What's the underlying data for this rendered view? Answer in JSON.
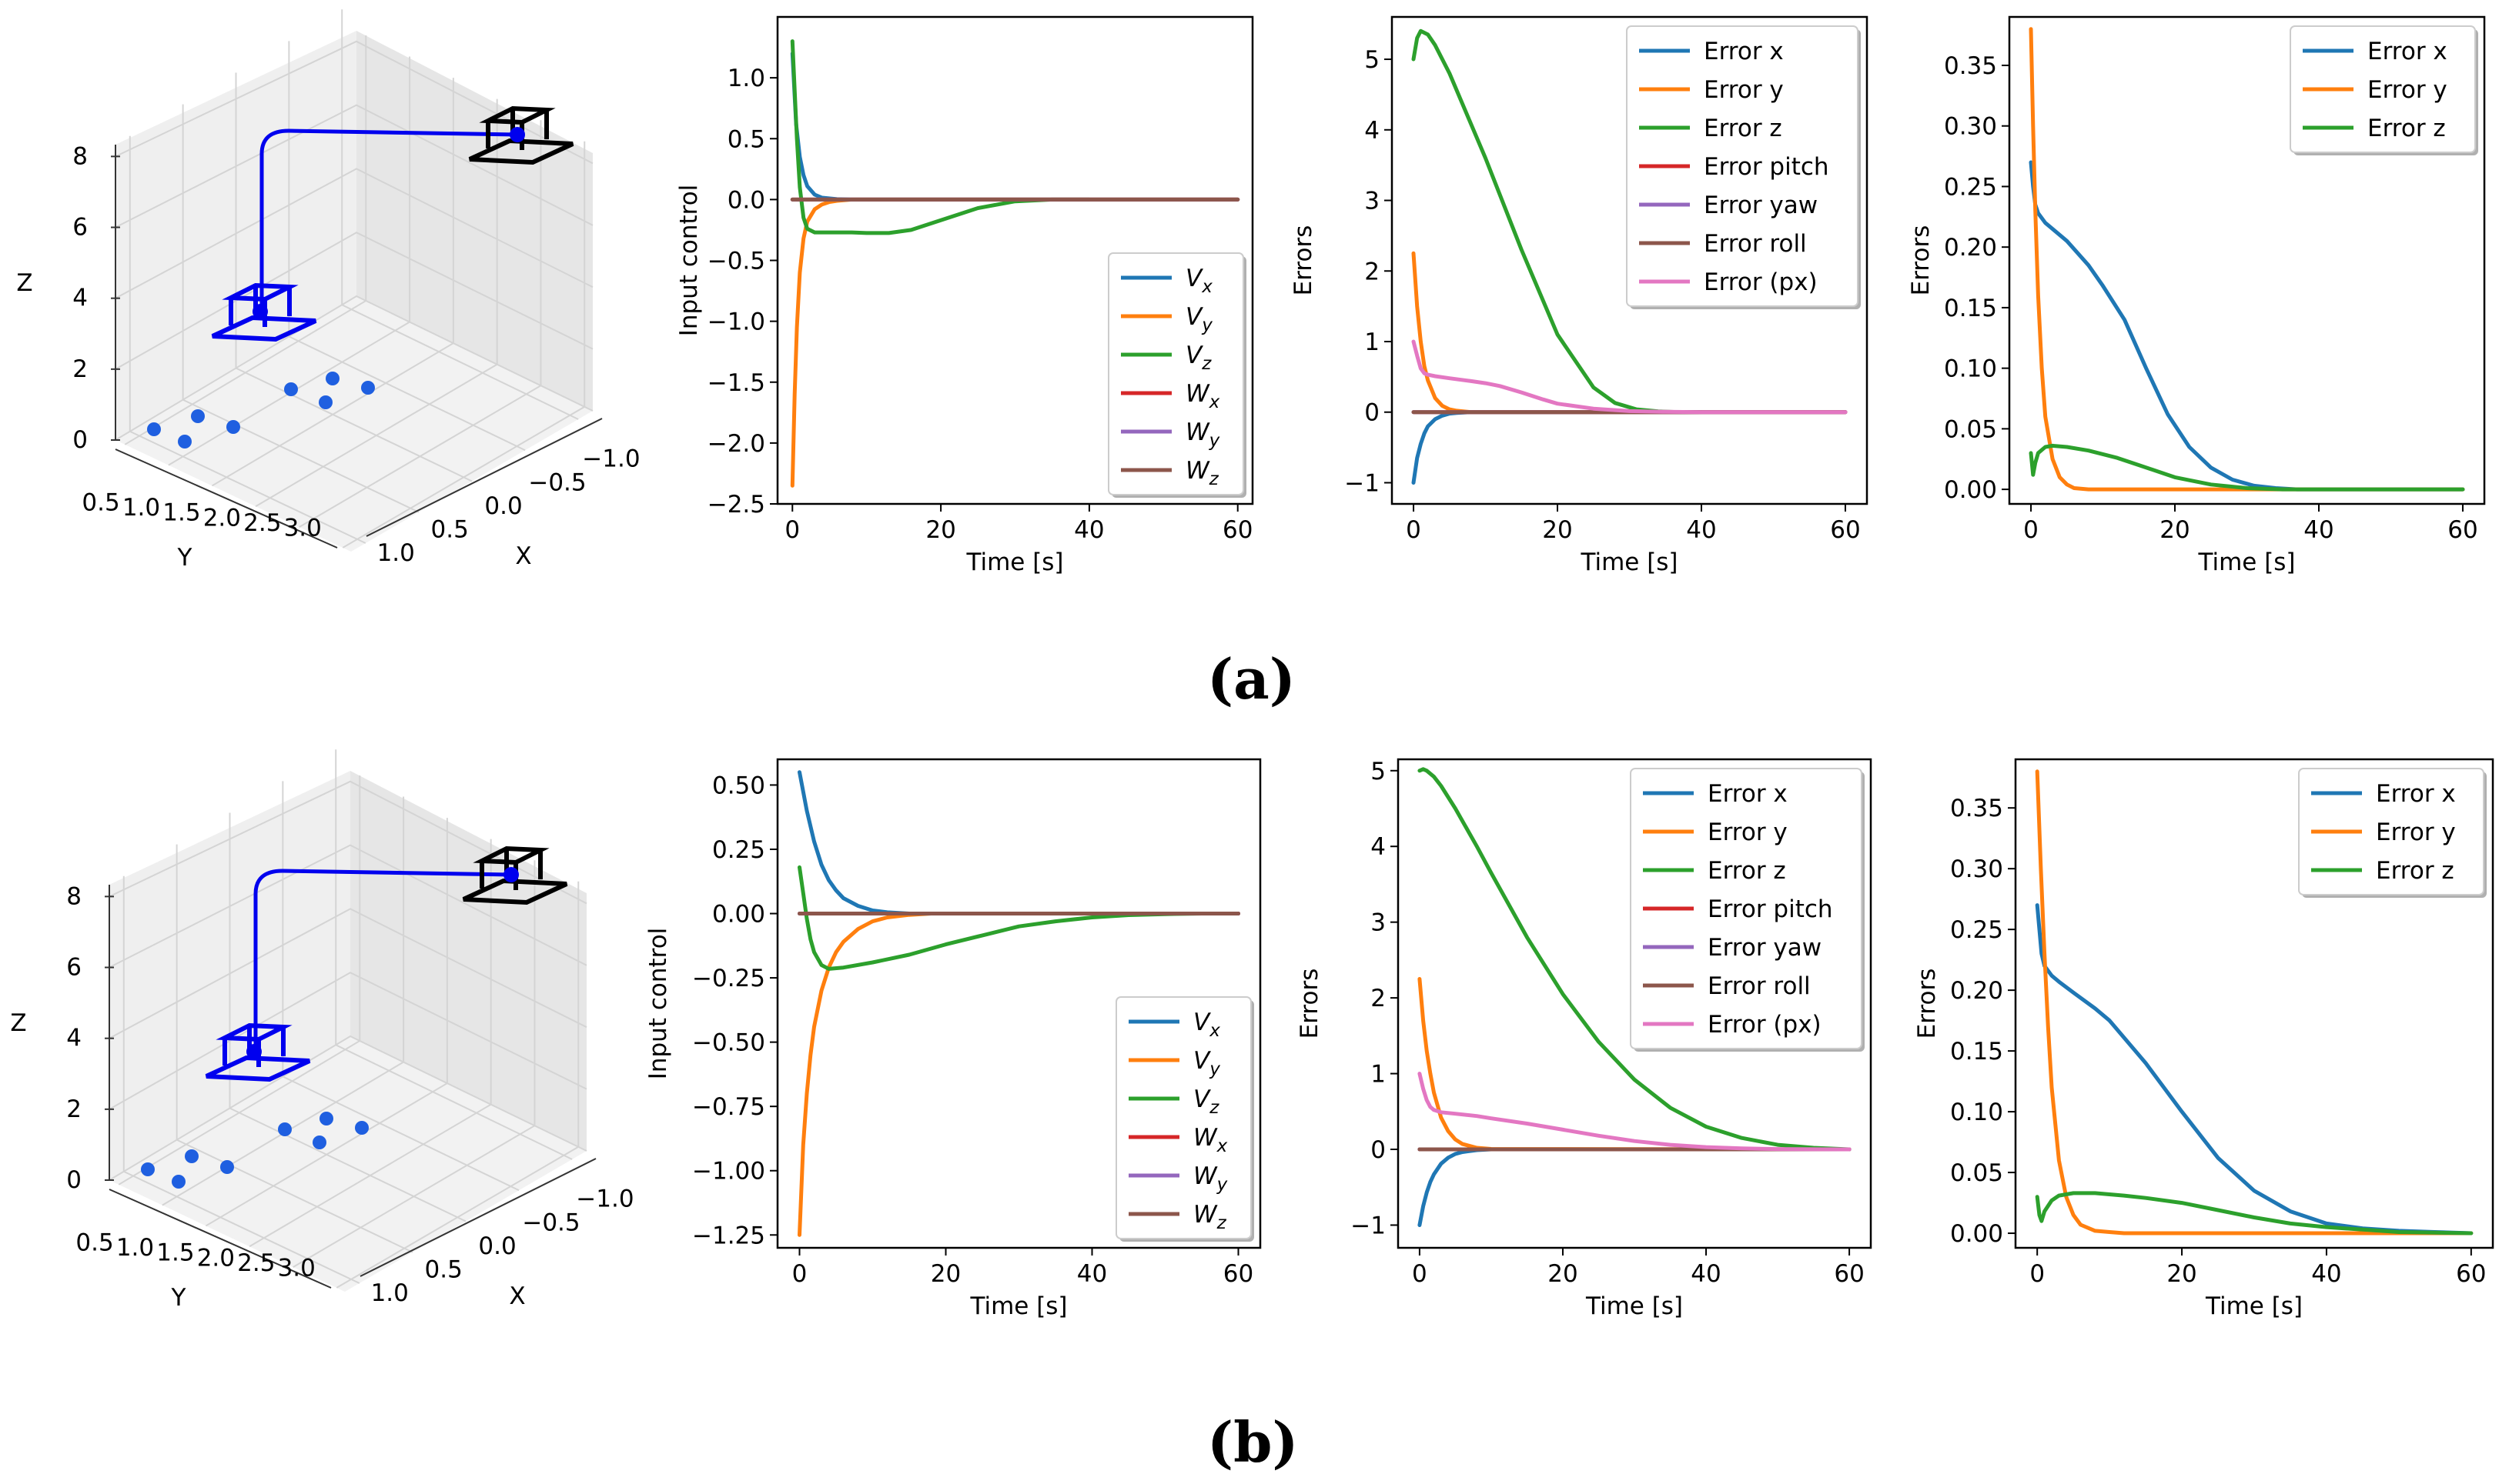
{
  "figure": {
    "row_labels": [
      "(a)",
      "(b)"
    ]
  },
  "chart_data": [
    {
      "panel": "(a)",
      "type": "line3d",
      "xlabel": "X",
      "ylabel": "Y",
      "zlabel": "Z",
      "xticks": [
        "1.0",
        "0.5",
        "0.0",
        "−0.5",
        "−1.0"
      ],
      "yticks": [
        "0.5",
        "1.0",
        "1.5",
        "2.0",
        "2.5",
        "3.0"
      ],
      "zticks": [
        "0",
        "2",
        "4",
        "6",
        "8"
      ],
      "colors": {
        "trajectory": "#0000ee",
        "final_camera": "#0000ee",
        "target_camera": "#000000",
        "feature_points": "#1f5fe0"
      }
    },
    {
      "panel": "(a)",
      "type": "line",
      "xlabel": "Time [s]",
      "ylabel": "Input control",
      "xlim": [
        -2,
        62
      ],
      "ylim": [
        -2.5,
        1.5
      ],
      "grid": false,
      "legend": "lower-right",
      "xticks": [
        0,
        20,
        40,
        60
      ],
      "yticks": [
        -2.5,
        -2.0,
        -1.5,
        -1.0,
        -0.5,
        0.0,
        0.5,
        1.0
      ],
      "series": [
        {
          "name": "V_x",
          "color": "#1f77b4",
          "x": [
            0,
            0.5,
            1,
            1.5,
            2,
            3,
            4,
            6,
            8,
            60
          ],
          "y": [
            1.2,
            0.62,
            0.35,
            0.2,
            0.11,
            0.04,
            0.015,
            0.003,
            0,
            0
          ]
        },
        {
          "name": "V_y",
          "color": "#ff7f0e",
          "x": [
            0,
            0.3,
            0.6,
            1,
            1.5,
            2,
            3,
            4,
            5,
            6,
            8,
            60
          ],
          "y": [
            -2.35,
            -1.6,
            -1.05,
            -0.6,
            -0.32,
            -0.18,
            -0.08,
            -0.04,
            -0.02,
            -0.01,
            0,
            0
          ]
        },
        {
          "name": "V_z",
          "color": "#2ca02c",
          "x": [
            0,
            0.3,
            0.6,
            1,
            1.5,
            2,
            3,
            5,
            8,
            10,
            13,
            16,
            20,
            25,
            30,
            35,
            40
          ],
          "y": [
            1.3,
            0.9,
            0.5,
            0.1,
            -0.15,
            -0.24,
            -0.27,
            -0.27,
            -0.27,
            -0.275,
            -0.275,
            -0.25,
            -0.17,
            -0.07,
            -0.015,
            0,
            0
          ]
        },
        {
          "name": "W_x",
          "color": "#d62728",
          "x": [
            0,
            60
          ],
          "y": [
            0,
            0
          ]
        },
        {
          "name": "W_y",
          "color": "#9467bd",
          "x": [
            0,
            60
          ],
          "y": [
            0,
            0
          ]
        },
        {
          "name": "W_z",
          "color": "#8c564b",
          "x": [
            0,
            60
          ],
          "y": [
            0,
            0
          ]
        }
      ]
    },
    {
      "panel": "(a)",
      "type": "line",
      "xlabel": "Time [s]",
      "ylabel": "Errors",
      "xlim": [
        -3,
        63
      ],
      "ylim": [
        -1.3,
        5.6
      ],
      "grid": false,
      "legend": "upper-right",
      "xticks": [
        0,
        20,
        40,
        60
      ],
      "yticks": [
        -1,
        0,
        1,
        2,
        3,
        4,
        5
      ],
      "series": [
        {
          "name": "Error x",
          "color": "#1f77b4",
          "x": [
            0,
            0.5,
            1,
            1.5,
            2,
            3,
            4,
            5,
            6,
            8,
            60
          ],
          "y": [
            -1.0,
            -0.65,
            -0.45,
            -0.3,
            -0.2,
            -0.1,
            -0.05,
            -0.02,
            -0.01,
            0,
            0
          ]
        },
        {
          "name": "Error y",
          "color": "#ff7f0e",
          "x": [
            0,
            0.5,
            1,
            1.5,
            2,
            3,
            4,
            5,
            6,
            8,
            60
          ],
          "y": [
            2.25,
            1.5,
            1.0,
            0.65,
            0.45,
            0.2,
            0.09,
            0.04,
            0.02,
            0,
            0
          ]
        },
        {
          "name": "Error z",
          "color": "#2ca02c",
          "x": [
            0,
            0.5,
            1,
            2,
            3,
            5,
            10,
            15,
            20,
            25,
            28,
            31,
            34,
            37,
            40
          ],
          "y": [
            5.0,
            5.3,
            5.4,
            5.35,
            5.2,
            4.8,
            3.6,
            2.3,
            1.1,
            0.35,
            0.13,
            0.04,
            0.01,
            0,
            0
          ]
        },
        {
          "name": "Error pitch",
          "color": "#d62728",
          "x": [
            0,
            60
          ],
          "y": [
            0,
            0
          ]
        },
        {
          "name": "Error yaw",
          "color": "#9467bd",
          "x": [
            0,
            60
          ],
          "y": [
            0,
            0
          ]
        },
        {
          "name": "Error roll",
          "color": "#8c564b",
          "x": [
            0,
            60
          ],
          "y": [
            0,
            0
          ]
        },
        {
          "name": "Error (px)",
          "color": "#e377c2",
          "x": [
            0,
            0.5,
            1,
            1.5,
            2,
            3,
            5,
            8,
            10,
            12,
            15,
            18,
            20,
            25,
            30,
            35,
            40,
            60
          ],
          "y": [
            1.0,
            0.8,
            0.62,
            0.55,
            0.53,
            0.51,
            0.48,
            0.44,
            0.41,
            0.37,
            0.28,
            0.18,
            0.12,
            0.05,
            0.015,
            0.005,
            0,
            0
          ]
        }
      ]
    },
    {
      "panel": "(a)",
      "type": "line",
      "xlabel": "Time [s]",
      "ylabel": "Errors",
      "xlim": [
        -3,
        63
      ],
      "ylim": [
        -0.012,
        0.39
      ],
      "grid": false,
      "legend": "upper-right",
      "xticks": [
        0,
        20,
        40,
        60
      ],
      "yticks": [
        0.0,
        0.05,
        0.1,
        0.15,
        0.2,
        0.25,
        0.3,
        0.35
      ],
      "series": [
        {
          "name": "Error x",
          "color": "#1f77b4",
          "x": [
            0,
            0.3,
            0.6,
            1,
            2,
            3,
            5,
            8,
            10,
            13,
            16,
            19,
            22,
            25,
            28,
            31,
            34,
            37,
            40,
            60
          ],
          "y": [
            0.27,
            0.25,
            0.235,
            0.228,
            0.22,
            0.215,
            0.205,
            0.185,
            0.168,
            0.14,
            0.1,
            0.062,
            0.035,
            0.018,
            0.008,
            0.003,
            0.001,
            0,
            0,
            0
          ]
        },
        {
          "name": "Error y",
          "color": "#ff7f0e",
          "x": [
            0,
            0.3,
            0.6,
            1,
            1.5,
            2,
            3,
            4,
            5,
            6,
            8,
            60
          ],
          "y": [
            0.38,
            0.3,
            0.23,
            0.16,
            0.1,
            0.06,
            0.025,
            0.01,
            0.004,
            0.001,
            0,
            0
          ]
        },
        {
          "name": "Error z",
          "color": "#2ca02c",
          "x": [
            0,
            0.3,
            0.6,
            1,
            2,
            3,
            5,
            8,
            12,
            15,
            20,
            25,
            30,
            35,
            40,
            60
          ],
          "y": [
            0.03,
            0.012,
            0.022,
            0.03,
            0.035,
            0.036,
            0.035,
            0.032,
            0.026,
            0.02,
            0.01,
            0.004,
            0.001,
            0,
            0,
            0
          ]
        }
      ]
    },
    {
      "panel": "(b)",
      "type": "line3d",
      "xlabel": "X",
      "ylabel": "Y",
      "zlabel": "Z",
      "xticks": [
        "1.0",
        "0.5",
        "0.0",
        "−0.5",
        "−1.0"
      ],
      "yticks": [
        "0.5",
        "1.0",
        "1.5",
        "2.0",
        "2.5",
        "3.0"
      ],
      "zticks": [
        "0",
        "2",
        "4",
        "6",
        "8"
      ],
      "colors": {
        "trajectory": "#0000ee",
        "final_camera": "#0000ee",
        "target_camera": "#000000",
        "feature_points": "#1f5fe0"
      }
    },
    {
      "panel": "(b)",
      "type": "line",
      "xlabel": "Time [s]",
      "ylabel": "Input control",
      "xlim": [
        -3,
        63
      ],
      "ylim": [
        -1.3,
        0.6
      ],
      "grid": false,
      "legend": "lower-right",
      "xticks": [
        0,
        20,
        40,
        60
      ],
      "yticks": [
        -1.25,
        -1.0,
        -0.75,
        -0.5,
        -0.25,
        0.0,
        0.25,
        0.5
      ],
      "series": [
        {
          "name": "V_x",
          "color": "#1f77b4",
          "x": [
            0,
            1,
            2,
            3,
            4,
            5,
            6,
            8,
            10,
            12,
            15,
            60
          ],
          "y": [
            0.55,
            0.4,
            0.28,
            0.19,
            0.13,
            0.09,
            0.06,
            0.03,
            0.012,
            0.005,
            0,
            0
          ]
        },
        {
          "name": "V_y",
          "color": "#ff7f0e",
          "x": [
            0,
            0.5,
            1,
            1.5,
            2,
            3,
            4,
            5,
            6,
            8,
            10,
            12,
            15,
            18,
            20,
            60
          ],
          "y": [
            -1.25,
            -0.9,
            -0.7,
            -0.55,
            -0.44,
            -0.3,
            -0.21,
            -0.15,
            -0.11,
            -0.06,
            -0.03,
            -0.015,
            -0.005,
            0,
            0,
            0
          ]
        },
        {
          "name": "V_z",
          "color": "#2ca02c",
          "x": [
            0,
            0.5,
            1,
            1.5,
            2,
            3,
            4,
            6,
            10,
            15,
            20,
            25,
            30,
            35,
            40,
            45,
            50,
            55
          ],
          "y": [
            0.18,
            0.08,
            -0.02,
            -0.1,
            -0.15,
            -0.2,
            -0.215,
            -0.21,
            -0.19,
            -0.16,
            -0.12,
            -0.085,
            -0.05,
            -0.03,
            -0.015,
            -0.006,
            -0.002,
            0
          ]
        },
        {
          "name": "W_x",
          "color": "#d62728",
          "x": [
            0,
            60
          ],
          "y": [
            0,
            0
          ]
        },
        {
          "name": "W_y",
          "color": "#9467bd",
          "x": [
            0,
            60
          ],
          "y": [
            0,
            0
          ]
        },
        {
          "name": "W_z",
          "color": "#8c564b",
          "x": [
            0,
            60
          ],
          "y": [
            0,
            0
          ]
        }
      ]
    },
    {
      "panel": "(b)",
      "type": "line",
      "xlabel": "Time [s]",
      "ylabel": "Errors",
      "xlim": [
        -3,
        63
      ],
      "ylim": [
        -1.3,
        5.15
      ],
      "grid": false,
      "legend": "upper-right",
      "xticks": [
        0,
        20,
        40,
        60
      ],
      "yticks": [
        -1,
        0,
        1,
        2,
        3,
        4,
        5
      ],
      "series": [
        {
          "name": "Error x",
          "color": "#1f77b4",
          "x": [
            0,
            0.5,
            1,
            1.5,
            2,
            3,
            4,
            5,
            6,
            8,
            10,
            60
          ],
          "y": [
            -1.0,
            -0.75,
            -0.57,
            -0.43,
            -0.33,
            -0.19,
            -0.11,
            -0.06,
            -0.035,
            -0.01,
            0,
            0
          ]
        },
        {
          "name": "Error y",
          "color": "#ff7f0e",
          "x": [
            0,
            0.5,
            1,
            1.5,
            2,
            3,
            4,
            5,
            6,
            8,
            10,
            60
          ],
          "y": [
            2.25,
            1.7,
            1.3,
            1.0,
            0.75,
            0.42,
            0.24,
            0.13,
            0.07,
            0.02,
            0.005,
            0
          ]
        },
        {
          "name": "Error z",
          "color": "#2ca02c",
          "x": [
            0,
            0.5,
            1,
            2,
            3,
            5,
            8,
            10,
            15,
            20,
            25,
            30,
            35,
            40,
            45,
            50,
            55,
            60
          ],
          "y": [
            5.0,
            5.02,
            5.0,
            4.92,
            4.8,
            4.5,
            4.0,
            3.65,
            2.8,
            2.05,
            1.42,
            0.92,
            0.55,
            0.3,
            0.15,
            0.06,
            0.02,
            0
          ]
        },
        {
          "name": "Error pitch",
          "color": "#d62728",
          "x": [
            0,
            60
          ],
          "y": [
            0,
            0
          ]
        },
        {
          "name": "Error yaw",
          "color": "#9467bd",
          "x": [
            0,
            60
          ],
          "y": [
            0,
            0
          ]
        },
        {
          "name": "Error roll",
          "color": "#8c564b",
          "x": [
            0,
            60
          ],
          "y": [
            0,
            0
          ]
        },
        {
          "name": "Error (px)",
          "color": "#e377c2",
          "x": [
            0,
            0.5,
            1,
            1.5,
            2,
            3,
            5,
            8,
            10,
            15,
            20,
            25,
            30,
            35,
            40,
            45,
            50,
            55,
            60
          ],
          "y": [
            1.0,
            0.8,
            0.65,
            0.56,
            0.52,
            0.49,
            0.47,
            0.44,
            0.41,
            0.34,
            0.26,
            0.18,
            0.11,
            0.06,
            0.03,
            0.012,
            0.004,
            0.001,
            0
          ]
        }
      ]
    },
    {
      "panel": "(b)",
      "type": "line",
      "xlabel": "Time [s]",
      "ylabel": "Errors",
      "xlim": [
        -3,
        63
      ],
      "ylim": [
        -0.012,
        0.39
      ],
      "grid": false,
      "legend": "upper-right",
      "xticks": [
        0,
        20,
        40,
        60
      ],
      "yticks": [
        0.0,
        0.05,
        0.1,
        0.15,
        0.2,
        0.25,
        0.3,
        0.35
      ],
      "series": [
        {
          "name": "Error x",
          "color": "#1f77b4",
          "x": [
            0,
            0.3,
            0.6,
            1,
            2,
            3,
            5,
            8,
            10,
            15,
            20,
            25,
            30,
            35,
            40,
            45,
            50,
            55,
            60
          ],
          "y": [
            0.27,
            0.25,
            0.23,
            0.22,
            0.212,
            0.207,
            0.198,
            0.185,
            0.175,
            0.14,
            0.1,
            0.062,
            0.035,
            0.018,
            0.008,
            0.004,
            0.002,
            0.001,
            0
          ]
        },
        {
          "name": "Error y",
          "color": "#ff7f0e",
          "x": [
            0,
            0.5,
            1,
            1.5,
            2,
            3,
            4,
            5,
            6,
            8,
            10,
            12,
            60
          ],
          "y": [
            0.38,
            0.3,
            0.23,
            0.17,
            0.12,
            0.06,
            0.03,
            0.015,
            0.007,
            0.002,
            0.001,
            0,
            0
          ]
        },
        {
          "name": "Error z",
          "color": "#2ca02c",
          "x": [
            0,
            0.3,
            0.6,
            1,
            2,
            3,
            5,
            8,
            12,
            15,
            20,
            25,
            30,
            35,
            40,
            45,
            50,
            55,
            60
          ],
          "y": [
            0.03,
            0.015,
            0.01,
            0.018,
            0.027,
            0.031,
            0.033,
            0.033,
            0.031,
            0.029,
            0.025,
            0.019,
            0.013,
            0.008,
            0.005,
            0.003,
            0.001,
            0.0005,
            0
          ]
        }
      ]
    }
  ]
}
